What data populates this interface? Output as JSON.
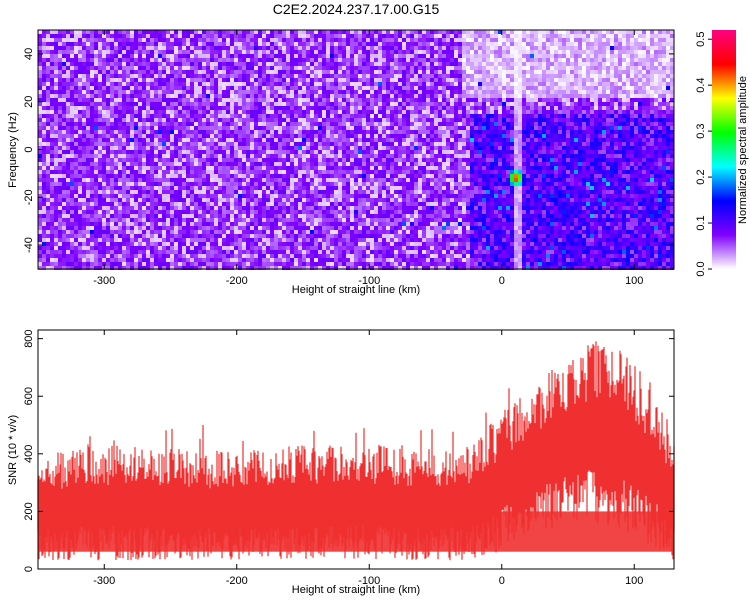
{
  "title": "C2E2.2024.237.17.00.G15",
  "chart_data": [
    {
      "type": "heatmap",
      "xlabel": "Height of straight line (km)",
      "ylabel": "Frequency (Hz)",
      "xlim": [
        -350,
        130
      ],
      "ylim": [
        -50,
        50
      ],
      "xticks": [
        -300,
        -200,
        -100,
        0,
        100
      ],
      "yticks": [
        -40,
        -20,
        0,
        20,
        40
      ],
      "colorbar": {
        "label": "Normalized spectral amplitude",
        "range": [
          0.0,
          0.52
        ],
        "ticks": [
          0.0,
          0.1,
          0.2,
          0.3,
          0.4,
          0.5
        ],
        "colors": [
          "#ffffff",
          "#8000ff",
          "#0000ff",
          "#00ffff",
          "#00ff00",
          "#ffff00",
          "#ff0000",
          "#ff0080"
        ]
      },
      "features": {
        "peak": {
          "x": 11,
          "y": -12,
          "value": 0.5
        },
        "high_noise_region": {
          "x_from": -25,
          "x_to": 130,
          "y_from": -50,
          "y_to": 15
        },
        "low_amplitude_region": {
          "x_from": -30,
          "x_to": 130,
          "y_from": 22,
          "y_to": 50
        },
        "vertical_streak_x": 12
      }
    },
    {
      "type": "area",
      "xlabel": "Height of straight line (km)",
      "ylabel": "SNR (10 * v/v)",
      "xlim": [
        -350,
        130
      ],
      "ylim": [
        0,
        830
      ],
      "xticks": [
        -300,
        -200,
        -100,
        0,
        100
      ],
      "yticks": [
        0,
        200,
        400,
        600,
        800
      ],
      "color": "#f03030",
      "envelope": {
        "x": [
          -350,
          -300,
          -250,
          -200,
          -150,
          -100,
          -50,
          -25,
          -10,
          0,
          20,
          40,
          60,
          80,
          100,
          120,
          130
        ],
        "upper": [
          400,
          430,
          420,
          410,
          430,
          440,
          420,
          430,
          500,
          560,
          630,
          700,
          780,
          800,
          720,
          600,
          440
        ],
        "lower": [
          30,
          30,
          30,
          30,
          30,
          30,
          30,
          30,
          40,
          60,
          110,
          140,
          170,
          150,
          110,
          60,
          30
        ]
      }
    }
  ]
}
